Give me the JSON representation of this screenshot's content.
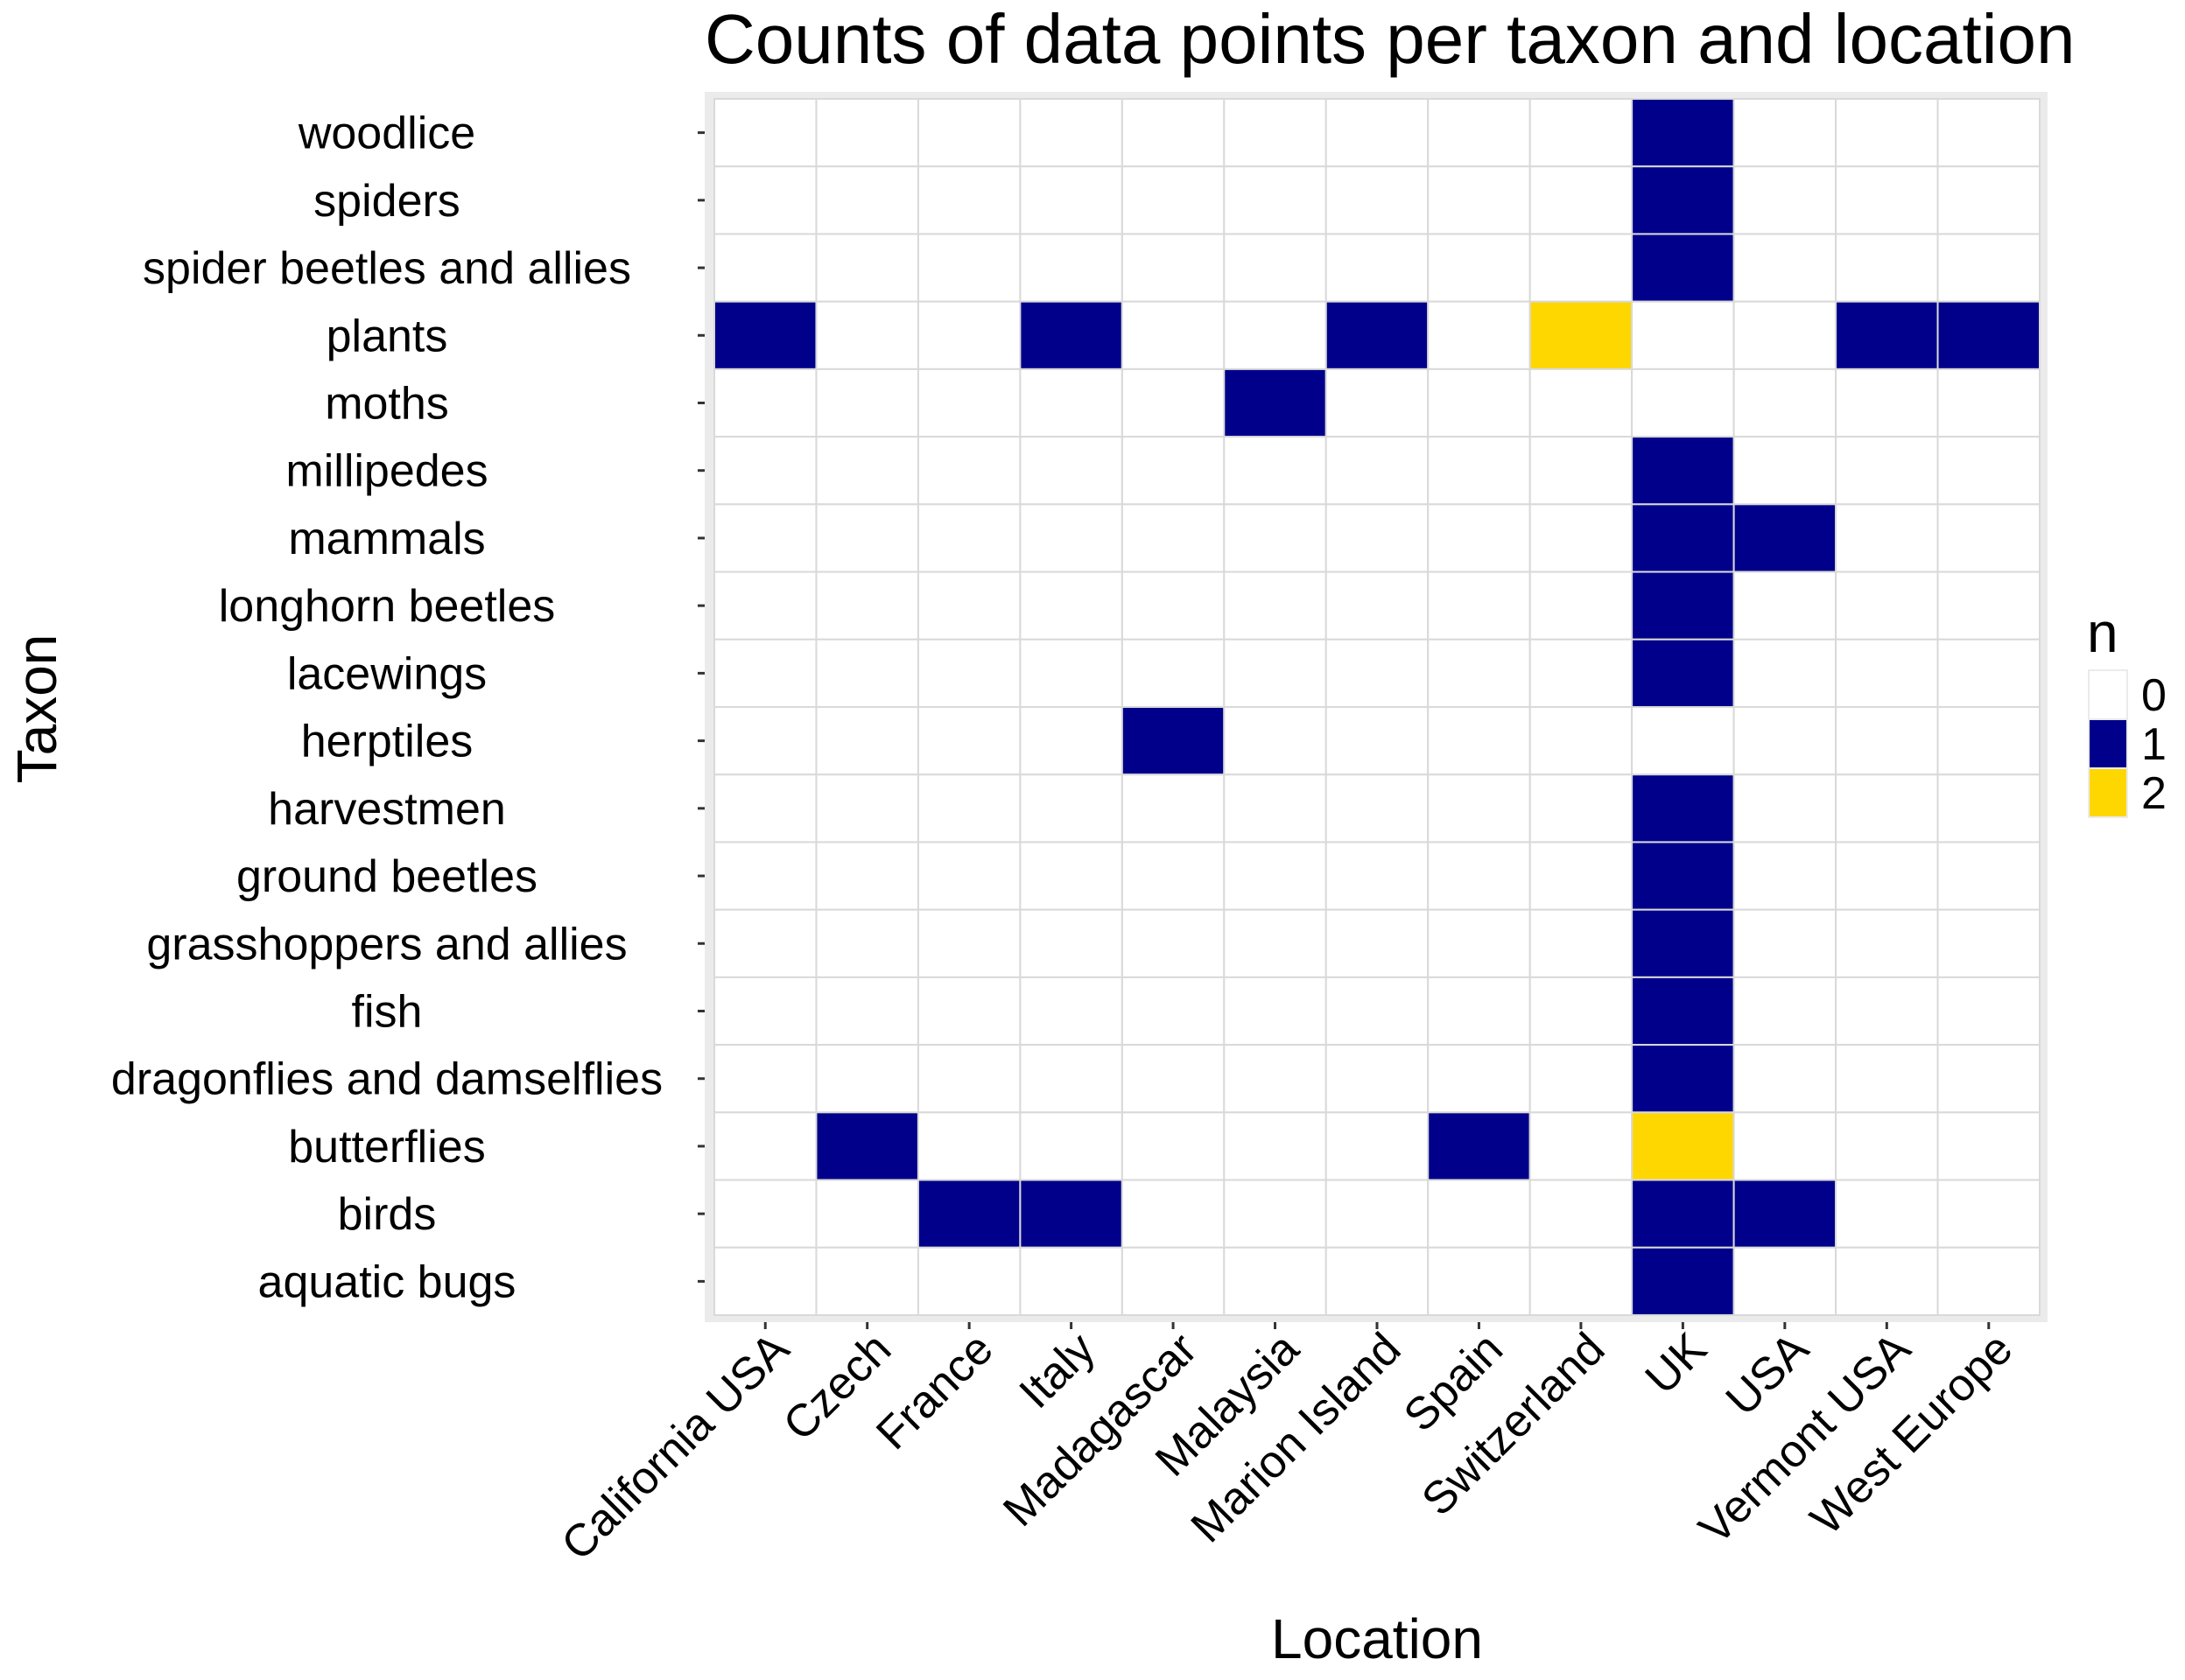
{
  "chart_data": {
    "type": "heatmap",
    "title": "Counts of data points per taxon and location",
    "xlabel": "Location",
    "ylabel": "Taxon",
    "x_categories": [
      "California USA",
      "Czech",
      "France",
      "Italy",
      "Madagascar",
      "Malaysia",
      "Marion Island",
      "Spain",
      "Switzerland",
      "UK",
      "USA",
      "Vermont USA",
      "West Europe"
    ],
    "y_categories": [
      "woodlice",
      "spiders",
      "spider beetles and allies",
      "plants",
      "moths",
      "millipedes",
      "mammals",
      "longhorn beetles",
      "lacewings",
      "herptiles",
      "harvestmen",
      "ground beetles",
      "grasshoppers and allies",
      "fish",
      "dragonflies and damselflies",
      "butterflies",
      "birds",
      "aquatic bugs"
    ],
    "values": [
      [
        0,
        0,
        0,
        0,
        0,
        0,
        0,
        0,
        0,
        1,
        0,
        0,
        0
      ],
      [
        0,
        0,
        0,
        0,
        0,
        0,
        0,
        0,
        0,
        1,
        0,
        0,
        0
      ],
      [
        0,
        0,
        0,
        0,
        0,
        0,
        0,
        0,
        0,
        1,
        0,
        0,
        0
      ],
      [
        1,
        0,
        0,
        1,
        0,
        0,
        1,
        0,
        2,
        0,
        0,
        1,
        1
      ],
      [
        0,
        0,
        0,
        0,
        0,
        1,
        0,
        0,
        0,
        0,
        0,
        0,
        0
      ],
      [
        0,
        0,
        0,
        0,
        0,
        0,
        0,
        0,
        0,
        1,
        0,
        0,
        0
      ],
      [
        0,
        0,
        0,
        0,
        0,
        0,
        0,
        0,
        0,
        1,
        1,
        0,
        0
      ],
      [
        0,
        0,
        0,
        0,
        0,
        0,
        0,
        0,
        0,
        1,
        0,
        0,
        0
      ],
      [
        0,
        0,
        0,
        0,
        0,
        0,
        0,
        0,
        0,
        1,
        0,
        0,
        0
      ],
      [
        0,
        0,
        0,
        0,
        1,
        0,
        0,
        0,
        0,
        0,
        0,
        0,
        0
      ],
      [
        0,
        0,
        0,
        0,
        0,
        0,
        0,
        0,
        0,
        1,
        0,
        0,
        0
      ],
      [
        0,
        0,
        0,
        0,
        0,
        0,
        0,
        0,
        0,
        1,
        0,
        0,
        0
      ],
      [
        0,
        0,
        0,
        0,
        0,
        0,
        0,
        0,
        0,
        1,
        0,
        0,
        0
      ],
      [
        0,
        0,
        0,
        0,
        0,
        0,
        0,
        0,
        0,
        1,
        0,
        0,
        0
      ],
      [
        0,
        0,
        0,
        0,
        0,
        0,
        0,
        0,
        0,
        1,
        0,
        0,
        0
      ],
      [
        0,
        1,
        0,
        0,
        0,
        0,
        0,
        1,
        0,
        2,
        0,
        0,
        0
      ],
      [
        0,
        0,
        1,
        1,
        0,
        0,
        0,
        0,
        0,
        1,
        1,
        0,
        0
      ],
      [
        0,
        0,
        0,
        0,
        0,
        0,
        0,
        0,
        0,
        1,
        0,
        0,
        0
      ]
    ],
    "legend": {
      "title": "n",
      "placement": "right",
      "levels": [
        {
          "label": "0",
          "color": "#ffffff"
        },
        {
          "label": "1",
          "color": "#00008b"
        },
        {
          "label": "2",
          "color": "#ffd700"
        }
      ]
    }
  }
}
